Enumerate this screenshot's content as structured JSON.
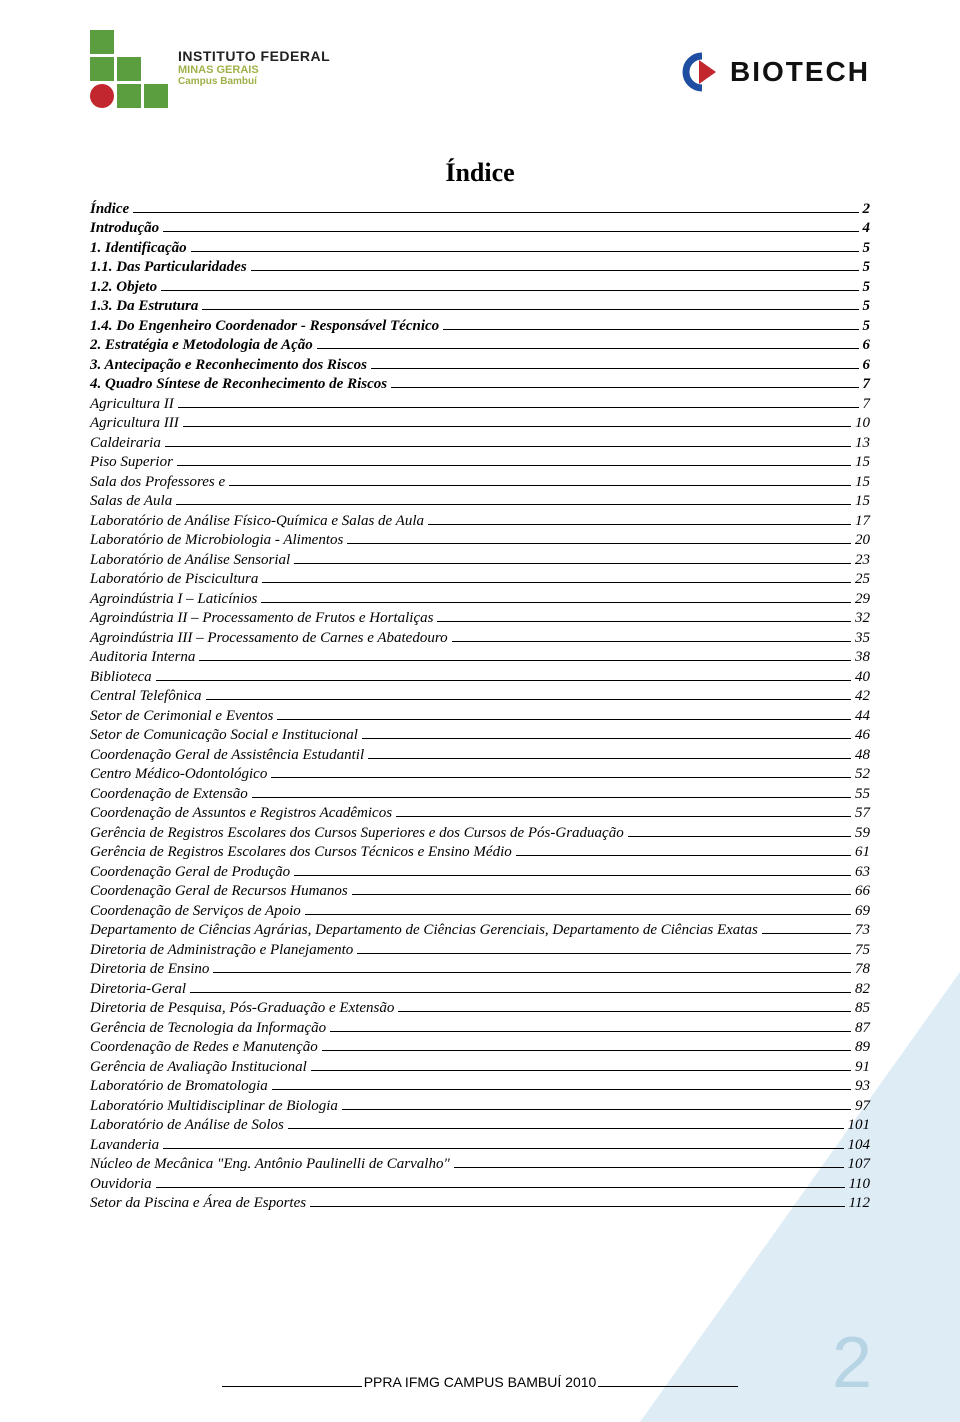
{
  "colors": {
    "green": "#5a9e3f",
    "red": "#c1272d",
    "olive": "#a1b04a",
    "ghost_blue": "#b6d4e3",
    "triangle": "rgba(160,200,230,0.35)"
  },
  "logo_left": {
    "line1": "INSTITUTO FEDERAL",
    "line2": "MINAS GERAIS",
    "line3": "Campus Bambuí"
  },
  "logo_right": "BIOTECH",
  "title": "Índice",
  "footer": "PPRA IFMG CAMPUS BAMBUÍ 2010",
  "big_page_number": "2",
  "toc": [
    {
      "label": "Índice",
      "page": "2",
      "style": "bold-it"
    },
    {
      "label": "Introdução",
      "page": "4",
      "style": "bold-it"
    },
    {
      "label": "1. Identificação",
      "page": "5",
      "style": "bold-it"
    },
    {
      "label": "1.1. Das Particularidades",
      "page": "5",
      "style": "bold-it"
    },
    {
      "label": "1.2. Objeto",
      "page": "5",
      "style": "bold-it"
    },
    {
      "label": "1.3. Da Estrutura",
      "page": "5",
      "style": "bold-it"
    },
    {
      "label": "1.4. Do Engenheiro Coordenador - Responsável Técnico",
      "page": "5",
      "style": "bold-it"
    },
    {
      "label": "2. Estratégia e Metodologia de Ação",
      "page": "6",
      "style": "bold-it"
    },
    {
      "label": "3. Antecipação e Reconhecimento dos Riscos",
      "page": "6",
      "style": "bold-it"
    },
    {
      "label": "4. Quadro Síntese de Reconhecimento de Riscos",
      "page": "7",
      "style": "bold-it"
    },
    {
      "label": "Agricultura II",
      "page": "7",
      "style": "italic"
    },
    {
      "label": "Agricultura III",
      "page": "10",
      "style": "italic"
    },
    {
      "label": "Caldeiraria",
      "page": "13",
      "style": "italic"
    },
    {
      "label": "Piso Superior",
      "page": "15",
      "style": "italic"
    },
    {
      "label": "Sala dos Professores e",
      "page": "15",
      "style": "italic"
    },
    {
      "label": "Salas de Aula",
      "page": "15",
      "style": "italic"
    },
    {
      "label": "Laboratório de Análise Físico-Química e Salas de Aula",
      "page": "17",
      "style": "italic"
    },
    {
      "label": "Laboratório de Microbiologia - Alimentos",
      "page": "20",
      "style": "italic"
    },
    {
      "label": "Laboratório de Análise Sensorial",
      "page": "23",
      "style": "italic"
    },
    {
      "label": "Laboratório de Piscicultura",
      "page": "25",
      "style": "italic"
    },
    {
      "label": "Agroindústria I – Laticínios",
      "page": "29",
      "style": "italic"
    },
    {
      "label": "Agroindústria II – Processamento de Frutos e Hortaliças",
      "page": "32",
      "style": "italic"
    },
    {
      "label": "Agroindústria III – Processamento de Carnes e Abatedouro",
      "page": "35",
      "style": "italic"
    },
    {
      "label": "Auditoria Interna",
      "page": "38",
      "style": "italic"
    },
    {
      "label": "Biblioteca",
      "page": "40",
      "style": "italic"
    },
    {
      "label": "Central Telefônica",
      "page": "42",
      "style": "italic"
    },
    {
      "label": "Setor de Cerimonial e Eventos",
      "page": "44",
      "style": "italic"
    },
    {
      "label": "Setor de Comunicação Social e Institucional",
      "page": "46",
      "style": "italic"
    },
    {
      "label": "Coordenação Geral de Assistência Estudantil",
      "page": "48",
      "style": "italic"
    },
    {
      "label": "Centro Médico-Odontológico",
      "page": "52",
      "style": "italic"
    },
    {
      "label": "Coordenação de Extensão",
      "page": "55",
      "style": "italic"
    },
    {
      "label": "Coordenação de Assuntos e Registros Acadêmicos",
      "page": "57",
      "style": "italic"
    },
    {
      "label": "Gerência de Registros Escolares dos Cursos Superiores e dos Cursos de Pós-Graduação",
      "page": "59",
      "style": "italic"
    },
    {
      "label": "Gerência de Registros Escolares dos Cursos Técnicos e Ensino Médio",
      "page": "61",
      "style": "italic"
    },
    {
      "label": "Coordenação Geral de Produção",
      "page": "63",
      "style": "italic"
    },
    {
      "label": "Coordenação Geral de Recursos Humanos",
      "page": "66",
      "style": "italic"
    },
    {
      "label": "Coordenação de Serviços de Apoio",
      "page": "69",
      "style": "italic"
    },
    {
      "label": "Departamento de Ciências Agrárias, Departamento de Ciências Gerenciais, Departamento de Ciências Exatas",
      "page": "73",
      "style": "italic"
    },
    {
      "label": "Diretoria de Administração e Planejamento",
      "page": "75",
      "style": "italic"
    },
    {
      "label": "Diretoria de Ensino",
      "page": "78",
      "style": "italic"
    },
    {
      "label": "Diretoria-Geral",
      "page": "82",
      "style": "italic"
    },
    {
      "label": "Diretoria de Pesquisa, Pós-Graduação e Extensão",
      "page": "85",
      "style": "italic"
    },
    {
      "label": "Gerência de Tecnologia da Informação",
      "page": "87",
      "style": "italic"
    },
    {
      "label": "Coordenação de Redes e Manutenção",
      "page": "89",
      "style": "italic"
    },
    {
      "label": "Gerência de Avaliação Institucional",
      "page": "91",
      "style": "italic"
    },
    {
      "label": "Laboratório de Bromatologia",
      "page": "93",
      "style": "italic"
    },
    {
      "label": "Laboratório Multidisciplinar de Biologia",
      "page": "97",
      "style": "italic"
    },
    {
      "label": "Laboratório de Análise de Solos",
      "page": "101",
      "style": "italic"
    },
    {
      "label": "Lavanderia",
      "page": "104",
      "style": "italic"
    },
    {
      "label": "Núcleo de Mecânica \"Eng. Antônio Paulinelli de Carvalho\"",
      "page": "107",
      "style": "italic"
    },
    {
      "label": "Ouvidoria",
      "page": "110",
      "style": "italic"
    },
    {
      "label": "Setor da Piscina e Área de Esportes",
      "page": "112",
      "style": "italic"
    }
  ]
}
